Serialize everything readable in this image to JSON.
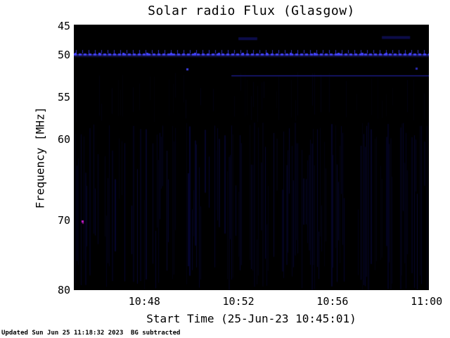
{
  "page": {
    "footer": {
      "updated": "Updated Sun Jun 25 11:18:32 2023",
      "bg_note": "BG subtracted"
    }
  },
  "chart_data": {
    "type": "heatmap",
    "title": "Solar radio Flux (Glasgow)",
    "xlabel": "Start Time (25-Jun-23 10:45:01)",
    "ylabel": "Frequency [MHz]",
    "station": "Glasgow",
    "start_time": "25-Jun-23 10:45:01",
    "x_ticks": [
      {
        "label": "10:48",
        "t_min": 3
      },
      {
        "label": "10:52",
        "t_min": 7
      },
      {
        "label": "10:56",
        "t_min": 11
      },
      {
        "label": "11:00",
        "t_min": 15
      }
    ],
    "x_range_min": [
      0,
      15.1
    ],
    "y_ticks": [
      {
        "label": "45",
        "freq_mhz": 45
      },
      {
        "label": "50",
        "freq_mhz": 50
      },
      {
        "label": "55",
        "freq_mhz": 55
      },
      {
        "label": "60",
        "freq_mhz": 60
      },
      {
        "label": "70",
        "freq_mhz": 70
      },
      {
        "label": "80",
        "freq_mhz": 80
      }
    ],
    "y_scale_points": [
      [
        45,
        0.005
      ],
      [
        50,
        0.114
      ],
      [
        55,
        0.273
      ],
      [
        60,
        0.432
      ],
      [
        70,
        0.737
      ],
      [
        80,
        1.0
      ]
    ],
    "plot_background": "#000000",
    "page_background": "#ffffff",
    "text_color": "#000000",
    "features": {
      "rfi_band": {
        "freq_mhz": 49.9,
        "t_min": [
          0,
          15.1
        ],
        "color": "#4343ff",
        "style": "dashed-comb",
        "description": "bright dashed interference band with periodic comb marks across full duration"
      },
      "weak_line": {
        "freq_mhz": 52.4,
        "t_min": [
          6.7,
          15.1
        ],
        "color": "#1d1d9a"
      },
      "points": [
        {
          "t_min": 4.8,
          "freq_mhz": 51.7,
          "color": "#3c3ce0"
        },
        {
          "t_min": 14.55,
          "freq_mhz": 51.6,
          "color": "#2a2ab4"
        }
      ],
      "faint_patches": [
        {
          "t_min": [
            7.0,
            7.8
          ],
          "freq_mhz": 47.2,
          "color": "#0d0d52"
        },
        {
          "t_min": [
            13.1,
            14.3
          ],
          "freq_mhz": 47.0,
          "color": "#0d0d52"
        }
      ],
      "burst_point": {
        "t_min": 0.35,
        "freq_mhz": 70.2,
        "color": "#c81ec8"
      },
      "noise_stripes": {
        "freq_range_mhz": [
          58,
          80
        ],
        "color": "#07073c",
        "coverage": 0.55
      }
    }
  }
}
